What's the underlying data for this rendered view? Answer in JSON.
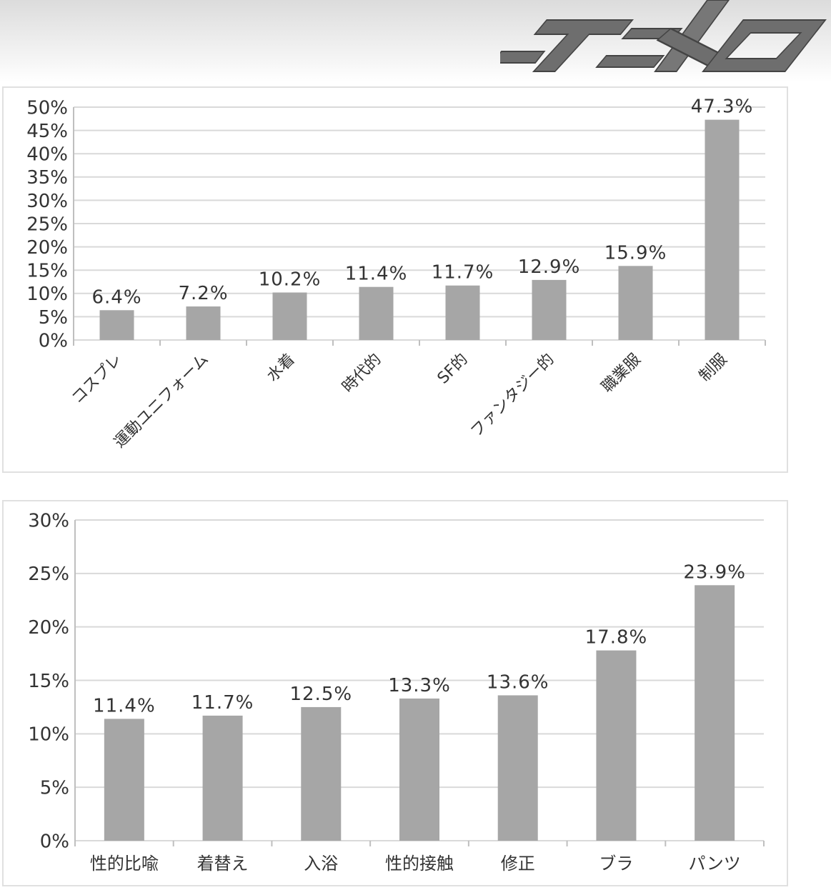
{
  "brand": {
    "logo_text": "アニメーロ"
  },
  "chart_data": [
    {
      "type": "bar",
      "categories": [
        "コスプレ",
        "運動ユニフォーム",
        "水着",
        "時代的",
        "SF的",
        "ファンタジー的",
        "職業服",
        "制服"
      ],
      "values": [
        6.4,
        7.2,
        10.2,
        11.4,
        11.7,
        12.9,
        15.9,
        47.3
      ],
      "data_labels": [
        "6.4%",
        "7.2%",
        "10.2%",
        "11.4%",
        "11.7%",
        "12.9%",
        "15.9%",
        "47.3%"
      ],
      "ylim": [
        0,
        50
      ],
      "yticks": [
        "0%",
        "5%",
        "10%",
        "15%",
        "20%",
        "25%",
        "30%",
        "35%",
        "40%",
        "45%",
        "50%"
      ],
      "grid": true,
      "legend": "none",
      "bar_color": "#a6a6a6"
    },
    {
      "type": "bar",
      "categories": [
        "性的比喩",
        "着替え",
        "入浴",
        "性的接触",
        "修正",
        "ブラ",
        "パンツ"
      ],
      "values": [
        11.4,
        11.7,
        12.5,
        13.3,
        13.6,
        17.8,
        23.9
      ],
      "data_labels": [
        "11.4%",
        "11.7%",
        "12.5%",
        "13.3%",
        "13.6%",
        "17.8%",
        "23.9%"
      ],
      "ylim": [
        0,
        30
      ],
      "yticks": [
        "0%",
        "5%",
        "10%",
        "15%",
        "20%",
        "25%",
        "30%"
      ],
      "grid": true,
      "legend": "none",
      "bar_color": "#a6a6a6"
    }
  ]
}
